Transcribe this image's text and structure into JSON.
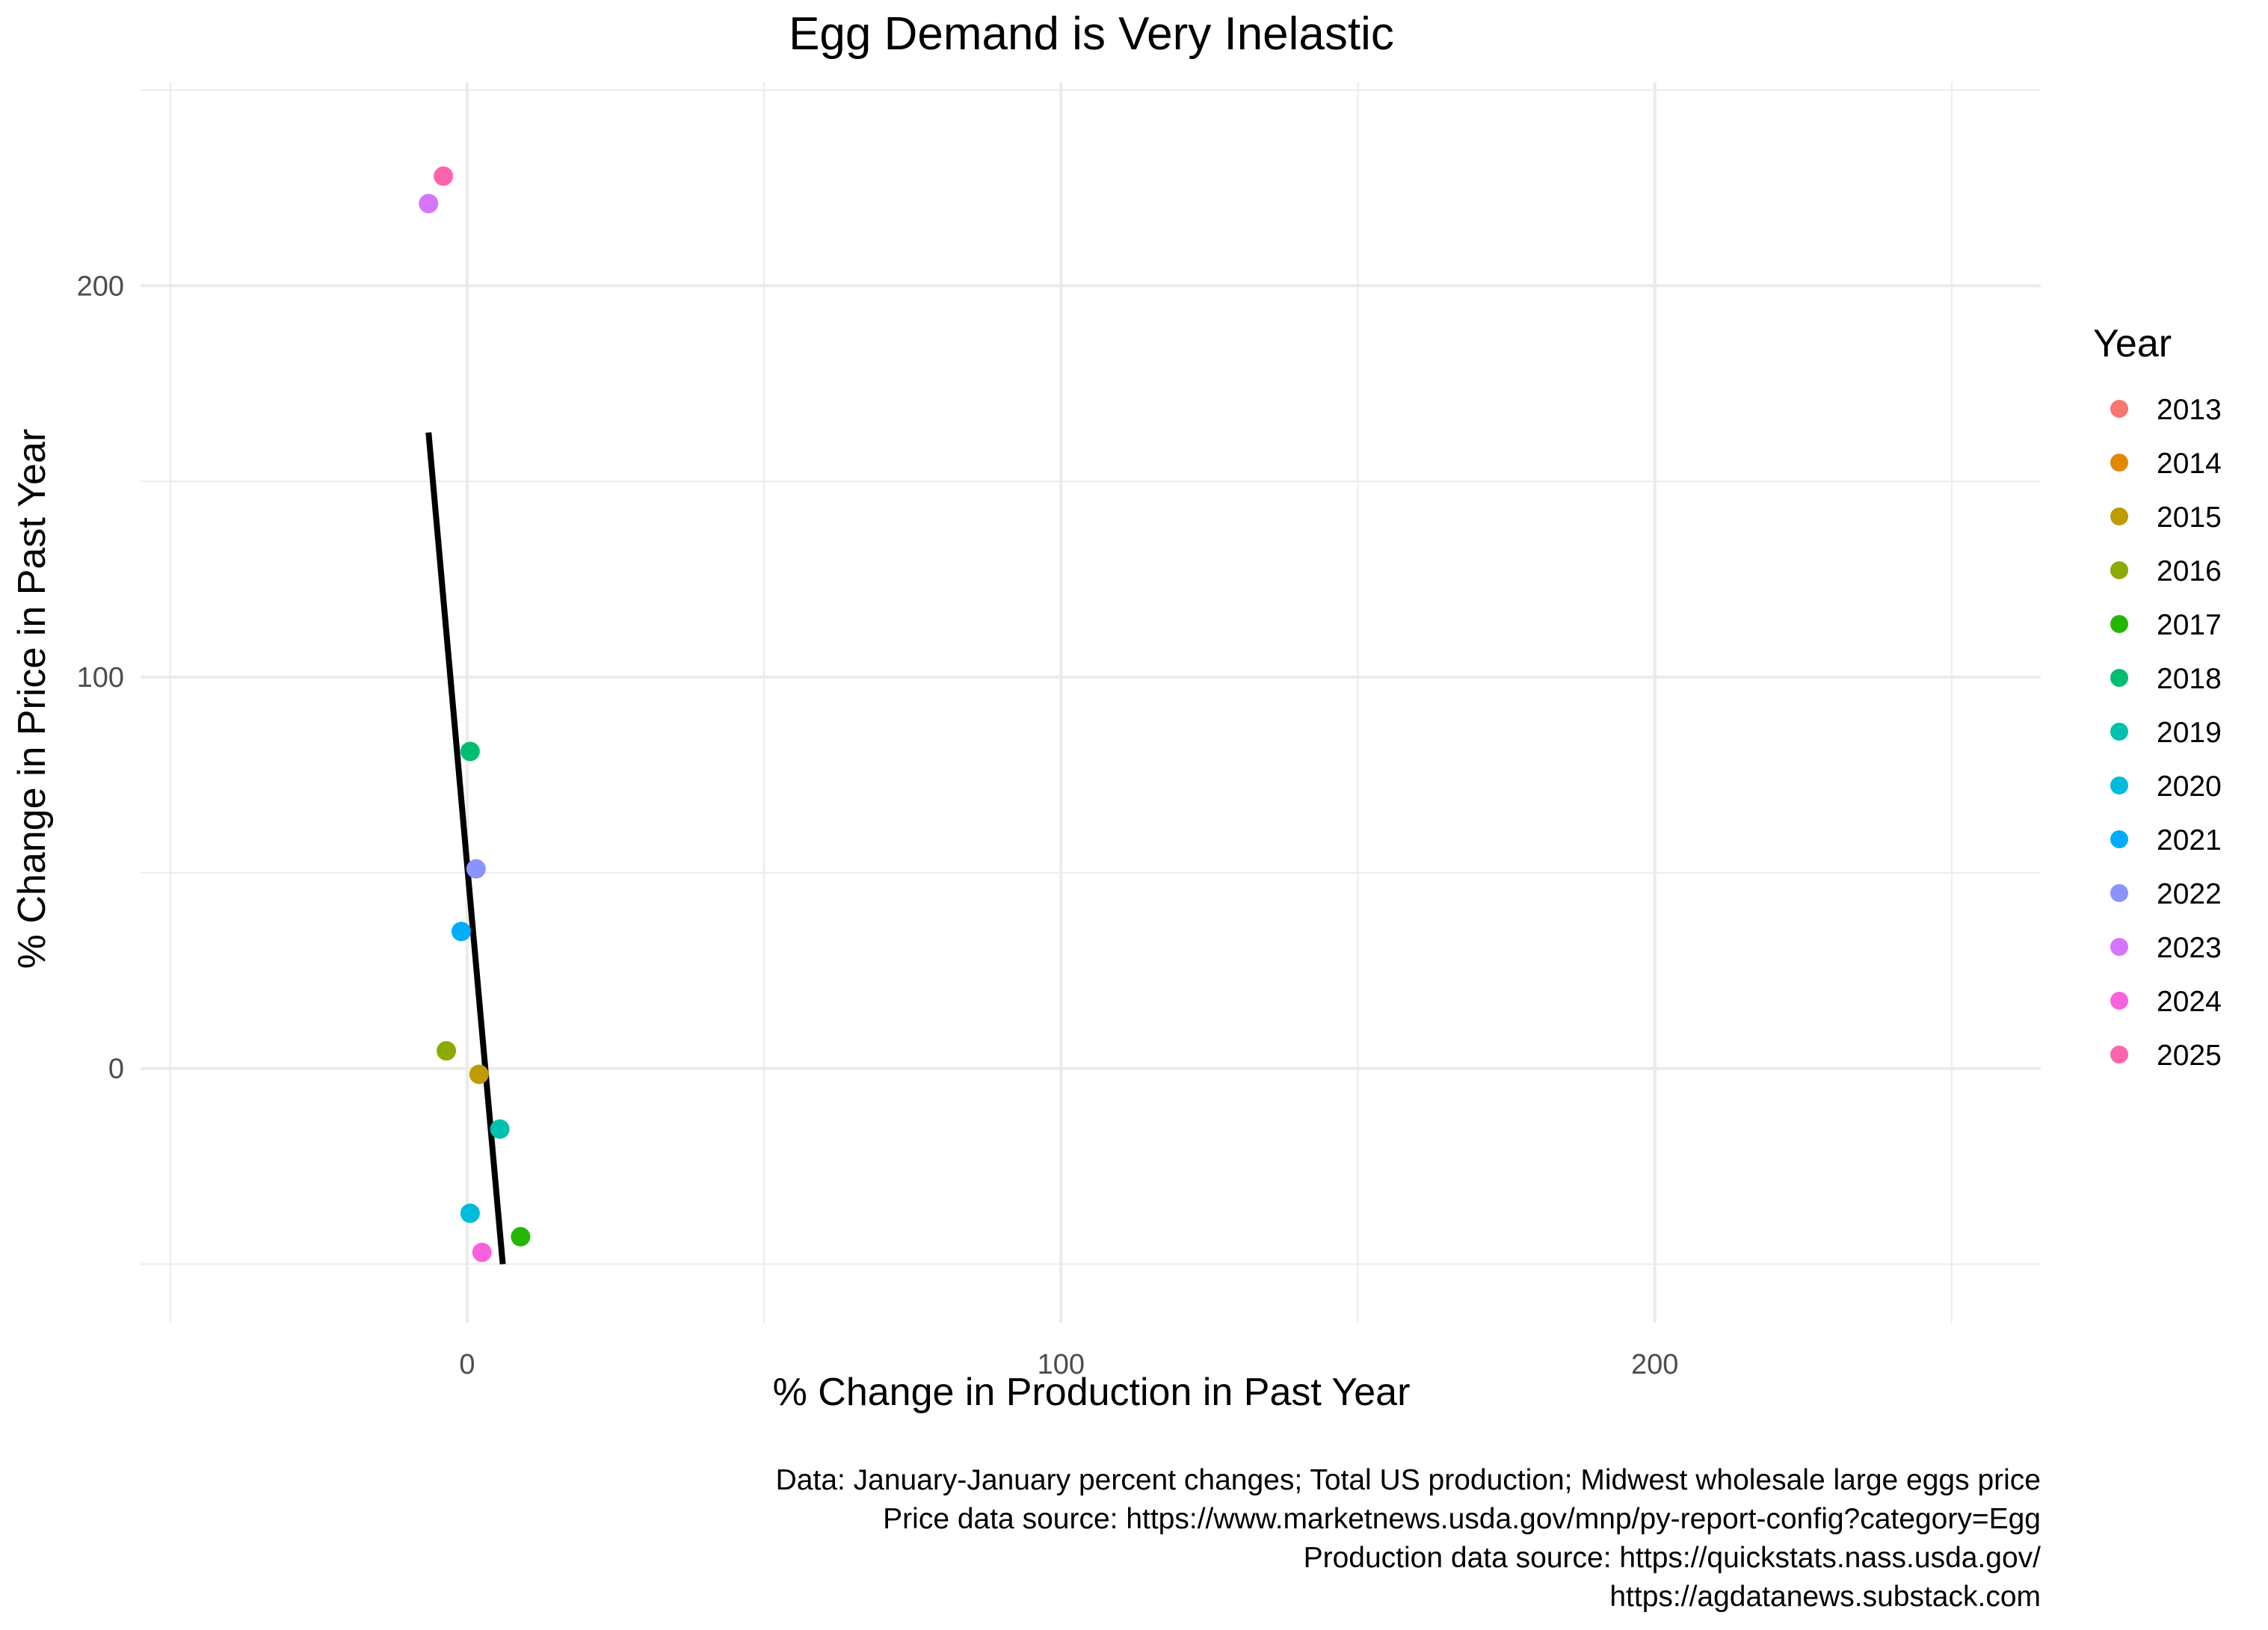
{
  "chart_data": {
    "type": "scatter",
    "title": "Egg Demand is Very Inelastic",
    "xlabel": "% Change in Production in Past Year",
    "ylabel": "% Change in Price in Past Year",
    "xlim": [
      -55,
      265
    ],
    "ylim": [
      -65,
      252
    ],
    "x_ticks": [
      0,
      100,
      200
    ],
    "y_ticks": [
      0,
      100,
      200
    ],
    "grid": true,
    "legend": {
      "title": "Year",
      "position": "right",
      "entries": [
        {
          "label": "2013",
          "color": "#F8766D"
        },
        {
          "label": "2014",
          "color": "#E18A00"
        },
        {
          "label": "2015",
          "color": "#BE9C00"
        },
        {
          "label": "2016",
          "color": "#8CAB00"
        },
        {
          "label": "2017",
          "color": "#24B700"
        },
        {
          "label": "2018",
          "color": "#00BE70"
        },
        {
          "label": "2019",
          "color": "#00C1AB"
        },
        {
          "label": "2020",
          "color": "#00BBDA"
        },
        {
          "label": "2021",
          "color": "#00ACFC"
        },
        {
          "label": "2022",
          "color": "#8B93FF"
        },
        {
          "label": "2023",
          "color": "#D575FE"
        },
        {
          "label": "2024",
          "color": "#F962DD"
        },
        {
          "label": "2025",
          "color": "#FF65AC"
        }
      ]
    },
    "points": [
      {
        "year": "2015",
        "x": 2,
        "y": -1.5
      },
      {
        "year": "2016",
        "x": -3.5,
        "y": 4.5
      },
      {
        "year": "2017",
        "x": 9,
        "y": -43
      },
      {
        "year": "2018",
        "x": 0.5,
        "y": 81
      },
      {
        "year": "2019",
        "x": 5.5,
        "y": -15.5
      },
      {
        "year": "2020",
        "x": 0.5,
        "y": -37
      },
      {
        "year": "2021",
        "x": -1,
        "y": 35
      },
      {
        "year": "2022",
        "x": 1.5,
        "y": 51
      },
      {
        "year": "2023",
        "x": -6.5,
        "y": 221
      },
      {
        "year": "2024",
        "x": 2.5,
        "y": -47
      },
      {
        "year": "2025",
        "x": -4,
        "y": 228
      }
    ],
    "fit_line": {
      "color": "#000000",
      "start": {
        "x": -6.5,
        "y": 162.5
      },
      "end": {
        "x": 6,
        "y": -50
      }
    },
    "caption": [
      "Data: January-January percent changes; Total US production; Midwest wholesale large eggs price",
      "Price data source: https://www.marketnews.usda.gov/mnp/py-report-config?category=Egg",
      "Production data source: https://quickstats.nass.usda.gov/",
      "https://agdatanews.substack.com"
    ]
  }
}
